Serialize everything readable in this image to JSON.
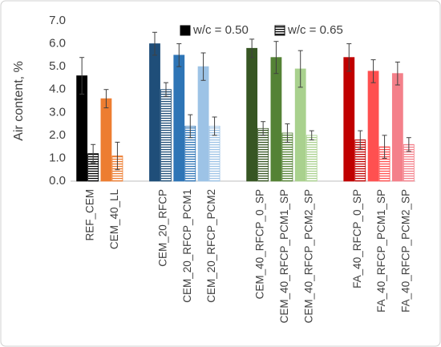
{
  "chart_data": {
    "type": "bar",
    "y_label": "Air content, %",
    "categories": [
      "REF_CEM",
      "CEM_40_LL",
      null,
      "CEM_20_RFCP",
      "CEM_20_RFCP_PCM1",
      "CEM_20_RFCP_PCM2",
      null,
      "CEM_40_RFCP_0_SP",
      "CEM_40_RFCP_PCM1_SP",
      "CEM_40_RFCP_PCM2_SP",
      null,
      "FA_40_RFCP_0_SP",
      "FA_40_RFCP_PCM1_SP",
      "FA_40_RFCP_PCM2_SP"
    ],
    "point_colors": [
      "#000000",
      "#ed7d31",
      null,
      "#1f4e79",
      "#2e75b6",
      "#9dc3e6",
      null,
      "#375623",
      "#548235",
      "#a9d18e",
      null,
      "#c00000",
      "#ff5050",
      "#f4808a"
    ],
    "series": [
      {
        "name": "w/c = 0.50",
        "color": "#000000",
        "hatch": false,
        "values": [
          4.6,
          3.6,
          null,
          6.0,
          5.5,
          5.0,
          null,
          5.8,
          5.4,
          4.9,
          null,
          5.4,
          4.8,
          4.7
        ],
        "errors": [
          0.8,
          0.4,
          null,
          0.5,
          0.5,
          0.6,
          null,
          0.4,
          0.7,
          0.8,
          null,
          0.6,
          0.5,
          0.5
        ]
      },
      {
        "name": "w/c = 0.65",
        "color": "#000000",
        "hatch": true,
        "values": [
          1.2,
          1.1,
          null,
          4.0,
          2.4,
          2.4,
          null,
          2.3,
          2.1,
          2.0,
          null,
          1.8,
          1.5,
          1.6
        ],
        "errors": [
          0.4,
          0.6,
          null,
          0.3,
          0.5,
          0.4,
          null,
          0.3,
          0.4,
          0.2,
          null,
          0.4,
          0.5,
          0.3
        ]
      }
    ],
    "ylim": [
      0,
      7
    ],
    "yticks": [
      {
        "value": 0,
        "label": "0.0"
      },
      {
        "value": 1,
        "label": "1.0"
      },
      {
        "value": 2,
        "label": "2.0"
      },
      {
        "value": 3,
        "label": "3.0"
      },
      {
        "value": 4,
        "label": "4.0"
      },
      {
        "value": 5,
        "label": "5.0"
      },
      {
        "value": 6,
        "label": "6.0"
      },
      {
        "value": 7,
        "label": "7.0"
      }
    ],
    "legend": "top",
    "grid": false
  }
}
